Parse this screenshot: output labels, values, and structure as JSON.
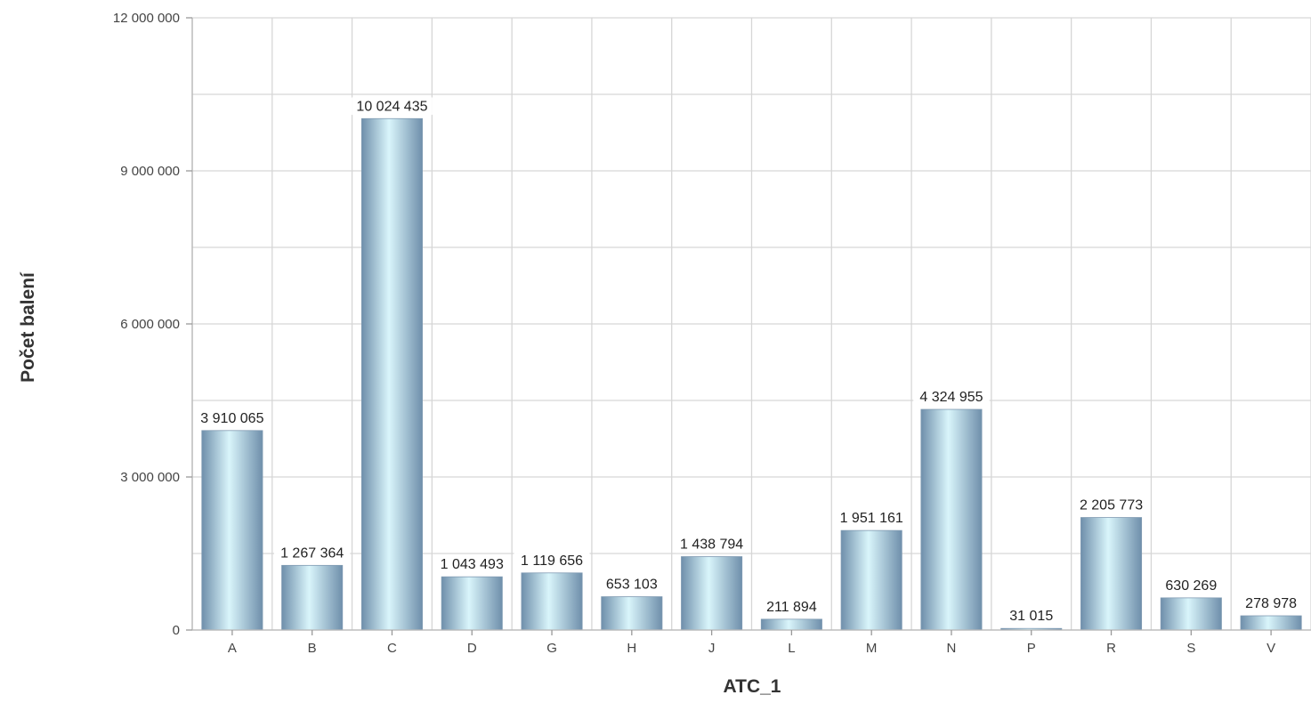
{
  "chart_data": {
    "type": "bar",
    "title": "",
    "xlabel": "ATC_1",
    "ylabel": "Počet balení",
    "categories": [
      "A",
      "B",
      "C",
      "D",
      "G",
      "H",
      "J",
      "L",
      "M",
      "N",
      "P",
      "R",
      "S",
      "V"
    ],
    "values": [
      3910065,
      1267364,
      10024435,
      1043493,
      1119656,
      653103,
      1438794,
      211894,
      1951161,
      4324955,
      31015,
      2205773,
      630269,
      278978
    ],
    "value_labels": [
      "3 910 065",
      "1 267 364",
      "10 024 435",
      "1 043 493",
      "1 119 656",
      "653 103",
      "1 438 794",
      "211 894",
      "1 951 161",
      "4 324 955",
      "31 015",
      "2 205 773",
      "630 269",
      "278 978"
    ],
    "ylim": [
      0,
      12000000
    ],
    "yticks": [
      0,
      3000000,
      6000000,
      9000000,
      12000000
    ],
    "ytick_labels": [
      "0",
      "3 000 000",
      "6 000 000",
      "9 000 000",
      "12 000 000"
    ],
    "grid": true,
    "legend": "none",
    "bar_colors": {
      "edge": "#6f8fab",
      "highlight": "#d9f5fb",
      "mid": "#9ab8cc"
    }
  }
}
